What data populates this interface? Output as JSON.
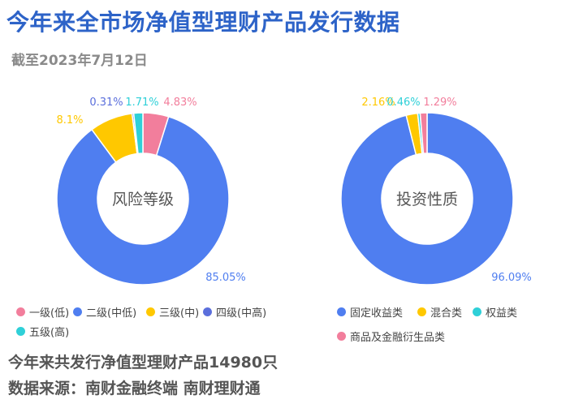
{
  "header": {
    "title": "今年来全市场净值型理财产品发行数据",
    "subtitle": "截至2023年7月12日"
  },
  "chart_data": [
    {
      "type": "pie",
      "center_label": "风险等级",
      "categories": [
        "一级(低)",
        "二级(中低)",
        "三级(中)",
        "四级(中高)",
        "五级(高)"
      ],
      "values": [
        4.83,
        85.05,
        8.1,
        0.31,
        1.71
      ],
      "value_labels": [
        "4.83%",
        "85.05%",
        "8.1%",
        "0.31%",
        "1.71%"
      ],
      "colors": [
        "#f27e9c",
        "#4f7ef0",
        "#ffc800",
        "#5b6fdc",
        "#2fd0d8"
      ],
      "legend_position": "bottom"
    },
    {
      "type": "pie",
      "center_label": "投资性质",
      "categories": [
        "固定收益类",
        "混合类",
        "权益类",
        "商品及金融衍生品类"
      ],
      "values": [
        96.09,
        2.16,
        0.46,
        1.29
      ],
      "value_labels": [
        "96.09%",
        "2.16%",
        "0.46%",
        "1.29%"
      ],
      "colors": [
        "#4f7ef0",
        "#ffc800",
        "#2fd0d8",
        "#f27e9c"
      ],
      "legend_position": "bottom"
    }
  ],
  "footer": {
    "total_text": "今年来共发行净值型理财产品14980只",
    "source_text": "数据来源：南财金融终端 南财理财通"
  }
}
